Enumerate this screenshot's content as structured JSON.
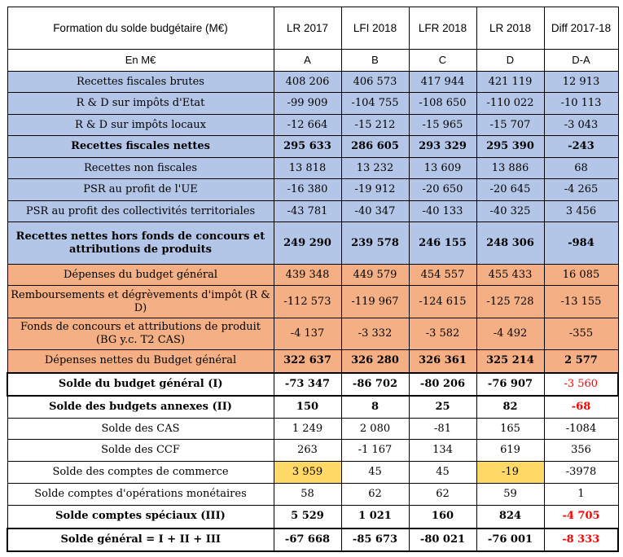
{
  "header": {
    "title": "Formation du solde budgétaire (M€)",
    "columns": [
      "LR 2017",
      "LFI 2018",
      "LFR 2018",
      "LR 2018",
      "Diff 2017-18"
    ]
  },
  "subheader": {
    "unit": "En M€",
    "letters": [
      "A",
      "B",
      "C",
      "D",
      "D-A"
    ]
  },
  "rows": [
    {
      "label": "Recettes fiscales brutes",
      "values": [
        "408 206",
        "406 573",
        "417 944",
        "421 119",
        "12 913"
      ]
    },
    {
      "label": "R & D sur impôts d'Etat",
      "values": [
        "-99 909",
        "-104 755",
        "-108 650",
        "-110 022",
        "-10 113"
      ]
    },
    {
      "label": "R & D sur impôts locaux",
      "values": [
        "-12 664",
        "-15 212",
        "-15 965",
        "-15 707",
        "-3 043"
      ]
    },
    {
      "label": "Recettes fiscales nettes",
      "values": [
        "295 633",
        "286 605",
        "293 329",
        "295 390",
        "-243"
      ]
    },
    {
      "label": "Recettes non fiscales",
      "values": [
        "13 818",
        "13 232",
        "13 609",
        "13 886",
        "68"
      ]
    },
    {
      "label": "PSR au profit de l'UE",
      "values": [
        "-16 380",
        "-19 912",
        "-20 650",
        "-20 645",
        "-4 265"
      ]
    },
    {
      "label": "PSR au profit des collectivités territoriales",
      "values": [
        "-43 781",
        "-40 347",
        "-40 133",
        "-40 325",
        "3 456"
      ]
    },
    {
      "label": "Recettes nettes hors fonds de concours et attributions de produits",
      "values": [
        "249 290",
        "239 578",
        "246 155",
        "248 306",
        "-984"
      ]
    },
    {
      "label": "Dépenses du budget général",
      "values": [
        "439 348",
        "449 579",
        "454 557",
        "455 433",
        "16 085"
      ]
    },
    {
      "label": "Remboursements et dégrèvements d'impôt (R & D)",
      "values": [
        "-112 573",
        "-119 967",
        "-124 615",
        "-125 728",
        "-13 155"
      ]
    },
    {
      "label": "Fonds de concours et attributions de produit (BG y.c. T2 CAS)",
      "values": [
        "-4 137",
        "-3 332",
        "-3 582",
        "-4 492",
        "-355"
      ]
    },
    {
      "label": "Dépenses nettes du Budget général",
      "values": [
        "322 637",
        "326 280",
        "326 361",
        "325 214",
        "2 577"
      ]
    },
    {
      "label": "Solde du budget général (I)",
      "values": [
        "-73 347",
        "-86 702",
        "-80 206",
        "-76 907",
        "-3 560"
      ]
    },
    {
      "label": "Solde des budgets annexes (II)",
      "values": [
        "150",
        "8",
        "25",
        "82",
        "-68"
      ]
    },
    {
      "label": "Solde des CAS",
      "values": [
        "1 249",
        "2 080",
        "-81",
        "165",
        "-1084"
      ]
    },
    {
      "label": "Solde des CCF",
      "values": [
        "263",
        "-1 167",
        "134",
        "619",
        "356"
      ]
    },
    {
      "label": "Solde des comptes de commerce",
      "values": [
        "3 959",
        "45",
        "45",
        "-19",
        "-3978"
      ]
    },
    {
      "label": "Solde comptes d'opérations monétaires",
      "values": [
        "58",
        "62",
        "62",
        "59",
        "1"
      ]
    },
    {
      "label": "Solde comptes spéciaux (III)",
      "values": [
        "5 529",
        "1 021",
        "160",
        "824",
        "-4 705"
      ]
    },
    {
      "label": "Solde général = I + II + III",
      "values": [
        "-67 668",
        "-85 673",
        "-80 021",
        "-76 001",
        "-8 333"
      ]
    }
  ],
  "colors": {
    "blue_fill": "#b4c6e7",
    "orange_fill": "#f4b084",
    "yellow_highlight": "#ffd966",
    "negative_red": "#ff0000"
  }
}
